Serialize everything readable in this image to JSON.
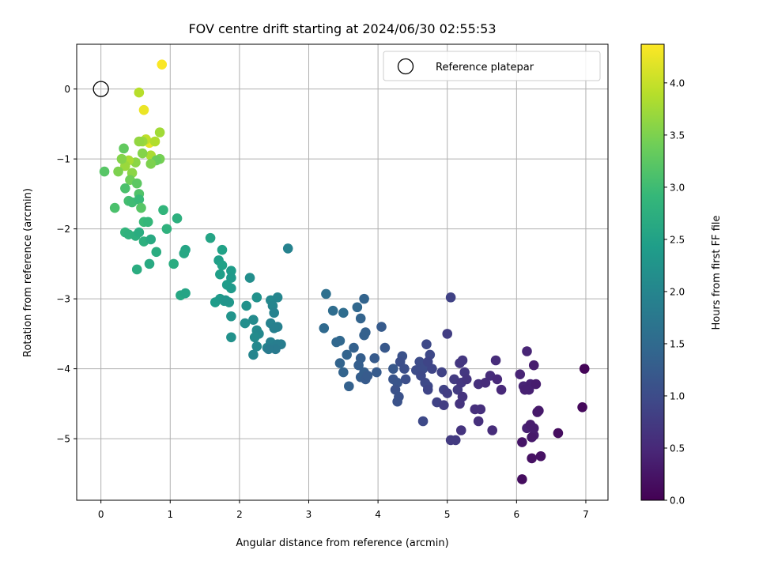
{
  "chart_data": {
    "type": "scatter",
    "title": "FOV centre drift starting at 2024/06/30 02:55:53",
    "xlabel": "Angular distance from reference (arcmin)",
    "ylabel": "Rotation from reference (arcmin)",
    "xlim": [
      -0.35,
      7.32
    ],
    "ylim": [
      -5.88,
      0.64
    ],
    "xticks": [
      0,
      1,
      2,
      3,
      4,
      5,
      6,
      7
    ],
    "yticks": [
      0,
      -1,
      -2,
      -3,
      -4,
      -5
    ],
    "xtick_labels": [
      "0",
      "1",
      "2",
      "3",
      "4",
      "5",
      "6",
      "7"
    ],
    "ytick_labels": [
      "0",
      "−1",
      "−2",
      "−3",
      "−4",
      "−5"
    ],
    "grid": true,
    "colormap": "viridis",
    "colorbar": {
      "label": "Hours from first FF file",
      "range": [
        0.0,
        4.37
      ],
      "ticks": [
        0.0,
        0.5,
        1.0,
        1.5,
        2.0,
        2.5,
        3.0,
        3.5,
        4.0
      ],
      "tick_labels": [
        "0.0",
        "0.5",
        "1.0",
        "1.5",
        "2.0",
        "2.5",
        "3.0",
        "3.5",
        "4.0"
      ]
    },
    "reference": {
      "x": 0,
      "y": 0,
      "marker": "open-circle",
      "label": "Reference platepar"
    },
    "legend": {
      "position": "top-right",
      "entries": [
        "Reference platepar"
      ]
    },
    "points": [
      [
        0.88,
        0.35,
        4.35
      ],
      [
        0.62,
        -0.3,
        4.25
      ],
      [
        0.7,
        -0.77,
        4.2
      ],
      [
        0.55,
        -0.05,
        3.9
      ],
      [
        0.65,
        -0.72,
        3.95
      ],
      [
        0.72,
        -0.95,
        3.8
      ],
      [
        0.85,
        -0.62,
        3.75
      ],
      [
        0.6,
        -0.75,
        3.7
      ],
      [
        0.55,
        -0.75,
        3.65
      ],
      [
        0.5,
        -1.05,
        3.6
      ],
      [
        0.78,
        -0.75,
        3.85
      ],
      [
        0.4,
        -1.02,
        3.8
      ],
      [
        0.35,
        -1.1,
        3.7
      ],
      [
        0.45,
        -1.2,
        3.6
      ],
      [
        0.3,
        -1.0,
        3.55
      ],
      [
        0.25,
        -1.18,
        3.5
      ],
      [
        0.42,
        -1.3,
        3.4
      ],
      [
        0.33,
        -0.85,
        3.3
      ],
      [
        0.05,
        -1.18,
        3.2
      ],
      [
        0.85,
        -1.0,
        3.45
      ],
      [
        0.8,
        -1.02,
        3.35
      ],
      [
        0.72,
        -1.07,
        3.5
      ],
      [
        0.6,
        -0.92,
        3.55
      ],
      [
        0.52,
        -1.35,
        3.25
      ],
      [
        0.55,
        -1.5,
        3.15
      ],
      [
        0.35,
        -1.42,
        3.1
      ],
      [
        0.4,
        -1.6,
        3.05
      ],
      [
        0.45,
        -1.62,
        3.0
      ],
      [
        0.55,
        -1.58,
        2.95
      ],
      [
        0.58,
        -1.7,
        3.2
      ],
      [
        0.2,
        -1.7,
        3.1
      ],
      [
        0.62,
        -1.9,
        2.95
      ],
      [
        0.68,
        -1.9,
        2.9
      ],
      [
        0.9,
        -1.73,
        2.85
      ],
      [
        0.95,
        -2.0,
        2.8
      ],
      [
        1.1,
        -1.85,
        2.75
      ],
      [
        0.35,
        -2.05,
        2.85
      ],
      [
        0.4,
        -2.08,
        2.8
      ],
      [
        0.5,
        -2.1,
        2.75
      ],
      [
        0.55,
        -2.05,
        2.7
      ],
      [
        0.62,
        -2.18,
        2.75
      ],
      [
        0.72,
        -2.15,
        2.65
      ],
      [
        0.8,
        -2.33,
        2.7
      ],
      [
        0.52,
        -2.58,
        2.7
      ],
      [
        0.7,
        -2.5,
        2.65
      ],
      [
        1.05,
        -2.5,
        2.7
      ],
      [
        1.22,
        -2.3,
        2.55
      ],
      [
        1.2,
        -2.35,
        2.6
      ],
      [
        1.15,
        -2.95,
        2.6
      ],
      [
        1.22,
        -2.92,
        2.55
      ],
      [
        1.58,
        -2.13,
        2.55
      ],
      [
        1.75,
        -2.3,
        2.5
      ],
      [
        1.7,
        -2.45,
        2.45
      ],
      [
        1.75,
        -2.52,
        2.5
      ],
      [
        1.88,
        -2.6,
        2.4
      ],
      [
        1.72,
        -2.65,
        2.45
      ],
      [
        1.88,
        -2.7,
        2.35
      ],
      [
        1.82,
        -2.8,
        2.4
      ],
      [
        1.88,
        -2.85,
        2.35
      ],
      [
        1.65,
        -3.05,
        2.4
      ],
      [
        1.72,
        -3.0,
        2.35
      ],
      [
        1.78,
        -3.03,
        2.3
      ],
      [
        1.85,
        -3.05,
        2.3
      ],
      [
        1.8,
        -3.02,
        2.25
      ],
      [
        1.88,
        -3.25,
        2.25
      ],
      [
        1.88,
        -3.55,
        2.2
      ],
      [
        2.1,
        -3.1,
        2.2
      ],
      [
        2.15,
        -2.7,
        2.15
      ],
      [
        2.25,
        -2.98,
        2.2
      ],
      [
        2.08,
        -3.35,
        2.15
      ],
      [
        2.2,
        -3.3,
        2.1
      ],
      [
        2.25,
        -3.45,
        2.1
      ],
      [
        2.28,
        -3.5,
        2.05
      ],
      [
        2.22,
        -3.55,
        2.1
      ],
      [
        2.25,
        -3.68,
        2.05
      ],
      [
        2.2,
        -3.8,
        2.0
      ],
      [
        2.4,
        -3.7,
        2.0
      ],
      [
        2.45,
        -3.02,
        2.05
      ],
      [
        2.55,
        -2.98,
        2.0
      ],
      [
        2.48,
        -3.1,
        2.0
      ],
      [
        2.5,
        -3.2,
        1.95
      ],
      [
        2.45,
        -3.35,
        1.95
      ],
      [
        2.55,
        -3.4,
        1.9
      ],
      [
        2.5,
        -3.42,
        1.9
      ],
      [
        2.45,
        -3.62,
        1.9
      ],
      [
        2.48,
        -3.7,
        1.85
      ],
      [
        2.55,
        -3.65,
        1.85
      ],
      [
        2.6,
        -3.65,
        1.85
      ],
      [
        2.52,
        -3.72,
        1.8
      ],
      [
        2.42,
        -3.72,
        1.8
      ],
      [
        2.7,
        -2.28,
        1.95
      ],
      [
        3.25,
        -2.93,
        1.6
      ],
      [
        3.35,
        -3.17,
        1.55
      ],
      [
        3.5,
        -3.2,
        1.55
      ],
      [
        3.22,
        -3.42,
        1.5
      ],
      [
        3.4,
        -3.62,
        1.45
      ],
      [
        3.45,
        -3.6,
        1.45
      ],
      [
        3.55,
        -3.8,
        1.4
      ],
      [
        3.45,
        -3.92,
        1.4
      ],
      [
        3.5,
        -4.05,
        1.4
      ],
      [
        3.58,
        -4.25,
        1.35
      ],
      [
        3.65,
        -3.7,
        1.35
      ],
      [
        3.75,
        -3.85,
        1.3
      ],
      [
        3.7,
        -3.12,
        1.45
      ],
      [
        3.8,
        -3.0,
        1.4
      ],
      [
        3.75,
        -3.28,
        1.4
      ],
      [
        3.8,
        -3.52,
        1.35
      ],
      [
        3.82,
        -3.48,
        1.35
      ],
      [
        3.72,
        -3.95,
        1.3
      ],
      [
        3.8,
        -4.05,
        1.3
      ],
      [
        3.75,
        -4.12,
        1.3
      ],
      [
        3.82,
        -4.15,
        1.25
      ],
      [
        3.85,
        -4.1,
        1.25
      ],
      [
        3.95,
        -3.85,
        1.25
      ],
      [
        3.98,
        -4.05,
        1.25
      ],
      [
        4.05,
        -3.4,
        1.25
      ],
      [
        4.1,
        -3.7,
        1.2
      ],
      [
        4.22,
        -4.0,
        1.2
      ],
      [
        4.22,
        -4.15,
        1.15
      ],
      [
        4.28,
        -4.2,
        1.15
      ],
      [
        4.25,
        -4.3,
        1.1
      ],
      [
        4.3,
        -4.4,
        1.1
      ],
      [
        4.28,
        -4.47,
        1.1
      ],
      [
        4.35,
        -3.82,
        1.1
      ],
      [
        4.32,
        -3.9,
        1.05
      ],
      [
        4.38,
        -4.0,
        1.05
      ],
      [
        4.4,
        -4.15,
        1.05
      ],
      [
        4.55,
        -4.02,
        1.0
      ],
      [
        4.6,
        -3.9,
        1.0
      ],
      [
        4.65,
        -4.0,
        1.0
      ],
      [
        4.62,
        -4.1,
        0.95
      ],
      [
        4.68,
        -4.2,
        0.95
      ],
      [
        4.72,
        -4.25,
        0.95
      ],
      [
        4.7,
        -3.65,
        0.95
      ],
      [
        4.75,
        -3.8,
        0.95
      ],
      [
        4.72,
        -3.9,
        0.9
      ],
      [
        4.78,
        -4.0,
        0.9
      ],
      [
        4.72,
        -4.3,
        0.9
      ],
      [
        4.65,
        -4.75,
        0.95
      ],
      [
        4.85,
        -4.48,
        0.85
      ],
      [
        4.92,
        -4.05,
        0.85
      ],
      [
        4.95,
        -4.3,
        0.85
      ],
      [
        5.0,
        -4.35,
        0.8
      ],
      [
        5.0,
        -3.5,
        0.8
      ],
      [
        4.95,
        -4.52,
        0.8
      ],
      [
        5.05,
        -2.98,
        0.85
      ],
      [
        5.05,
        -5.02,
        0.75
      ],
      [
        5.12,
        -5.02,
        0.75
      ],
      [
        5.1,
        -4.15,
        0.75
      ],
      [
        5.15,
        -4.3,
        0.75
      ],
      [
        5.18,
        -3.92,
        0.7
      ],
      [
        5.22,
        -3.88,
        0.7
      ],
      [
        5.25,
        -4.05,
        0.7
      ],
      [
        5.2,
        -4.2,
        0.7
      ],
      [
        5.28,
        -4.15,
        0.65
      ],
      [
        5.22,
        -4.4,
        0.65
      ],
      [
        5.18,
        -4.5,
        0.65
      ],
      [
        5.2,
        -4.88,
        0.65
      ],
      [
        5.4,
        -4.58,
        0.6
      ],
      [
        5.48,
        -4.58,
        0.6
      ],
      [
        5.45,
        -4.75,
        0.6
      ],
      [
        5.45,
        -4.22,
        0.6
      ],
      [
        5.55,
        -4.2,
        0.55
      ],
      [
        5.62,
        -4.1,
        0.55
      ],
      [
        5.65,
        -4.88,
        0.55
      ],
      [
        5.7,
        -3.88,
        0.55
      ],
      [
        5.72,
        -4.15,
        0.5
      ],
      [
        5.78,
        -4.3,
        0.5
      ],
      [
        6.05,
        -4.08,
        0.45
      ],
      [
        6.1,
        -4.25,
        0.45
      ],
      [
        6.15,
        -3.75,
        0.45
      ],
      [
        6.2,
        -4.22,
        0.4
      ],
      [
        6.18,
        -4.3,
        0.4
      ],
      [
        6.15,
        -4.85,
        0.4
      ],
      [
        6.2,
        -4.8,
        0.35
      ],
      [
        6.25,
        -4.95,
        0.35
      ],
      [
        6.22,
        -4.98,
        0.3
      ],
      [
        6.25,
        -3.95,
        0.35
      ],
      [
        6.28,
        -4.22,
        0.35
      ],
      [
        6.3,
        -4.62,
        0.3
      ],
      [
        6.32,
        -4.6,
        0.3
      ],
      [
        6.08,
        -5.05,
        0.25
      ],
      [
        6.22,
        -5.28,
        0.2
      ],
      [
        6.35,
        -5.25,
        0.2
      ],
      [
        6.08,
        -5.58,
        0.15
      ],
      [
        6.6,
        -4.92,
        0.15
      ],
      [
        6.95,
        -4.55,
        0.1
      ],
      [
        6.98,
        -4.0,
        0.05
      ],
      [
        6.12,
        -4.3,
        0.4
      ],
      [
        6.25,
        -4.85,
        0.35
      ]
    ]
  }
}
